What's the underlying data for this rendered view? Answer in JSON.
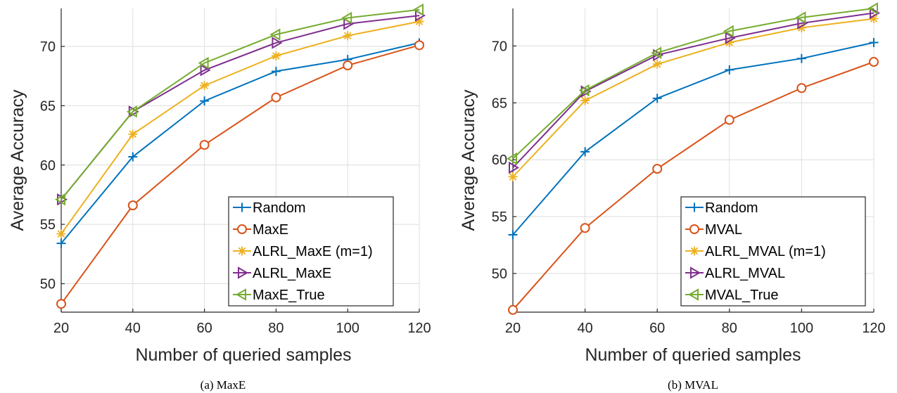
{
  "chart_data": [
    {
      "type": "line",
      "caption": "(a) MaxE",
      "xlabel": "Number of queried samples",
      "ylabel": "Average Accuracy",
      "x": [
        20,
        40,
        60,
        80,
        100,
        120
      ],
      "xticks": [
        "20",
        "40",
        "60",
        "80",
        "100",
        "120"
      ],
      "yticks": [
        "50",
        "55",
        "60",
        "65",
        "70"
      ],
      "xlim": [
        20,
        120
      ],
      "ylim": [
        47.6,
        73.2
      ],
      "grid": true,
      "legend_position": "bottom-right",
      "series": [
        {
          "name": "Random",
          "color": "#0072BD",
          "marker": "plus",
          "values": [
            53.4,
            60.7,
            65.4,
            67.9,
            68.9,
            70.3
          ]
        },
        {
          "name": "MaxE",
          "color": "#D95319",
          "marker": "circle",
          "values": [
            48.3,
            56.6,
            61.7,
            65.7,
            68.4,
            70.1
          ]
        },
        {
          "name": "ALRL_MaxE (m=1)",
          "color": "#EDB120",
          "marker": "asterisk",
          "values": [
            54.2,
            62.6,
            66.7,
            69.2,
            70.9,
            72.1
          ]
        },
        {
          "name": "ALRL_MaxE",
          "color": "#7E2F8E",
          "marker": "triangle-right",
          "values": [
            57.1,
            64.5,
            68.0,
            70.3,
            71.9,
            72.6
          ]
        },
        {
          "name": "MaxE_True",
          "color": "#77AC30",
          "marker": "triangle-left",
          "values": [
            57.1,
            64.5,
            68.6,
            71.0,
            72.4,
            73.1
          ]
        }
      ]
    },
    {
      "type": "line",
      "caption": "(b) MVAL",
      "xlabel": "Number of queried samples",
      "ylabel": "Average Accuracy",
      "x": [
        20,
        40,
        60,
        80,
        100,
        120
      ],
      "xticks": [
        "20",
        "40",
        "60",
        "80",
        "100",
        "120"
      ],
      "yticks": [
        "50",
        "55",
        "60",
        "65",
        "70"
      ],
      "xlim": [
        20,
        120
      ],
      "ylim": [
        46.6,
        73.3
      ],
      "grid": true,
      "legend_position": "bottom-right",
      "series": [
        {
          "name": "Random",
          "color": "#0072BD",
          "marker": "plus",
          "values": [
            53.4,
            60.7,
            65.4,
            67.9,
            68.9,
            70.3
          ]
        },
        {
          "name": "MVAL",
          "color": "#D95319",
          "marker": "circle",
          "values": [
            46.8,
            54.0,
            59.2,
            63.5,
            66.3,
            68.6
          ]
        },
        {
          "name": "ALRL_MVAL (m=1)",
          "color": "#EDB120",
          "marker": "asterisk",
          "values": [
            58.5,
            65.2,
            68.4,
            70.3,
            71.6,
            72.4
          ]
        },
        {
          "name": "ALRL_MVAL",
          "color": "#7E2F8E",
          "marker": "triangle-right",
          "values": [
            59.3,
            66.0,
            69.2,
            70.7,
            72.0,
            72.9
          ]
        },
        {
          "name": "MVAL_True",
          "color": "#77AC30",
          "marker": "triangle-left",
          "values": [
            60.1,
            66.1,
            69.4,
            71.3,
            72.5,
            73.3
          ]
        }
      ]
    }
  ]
}
